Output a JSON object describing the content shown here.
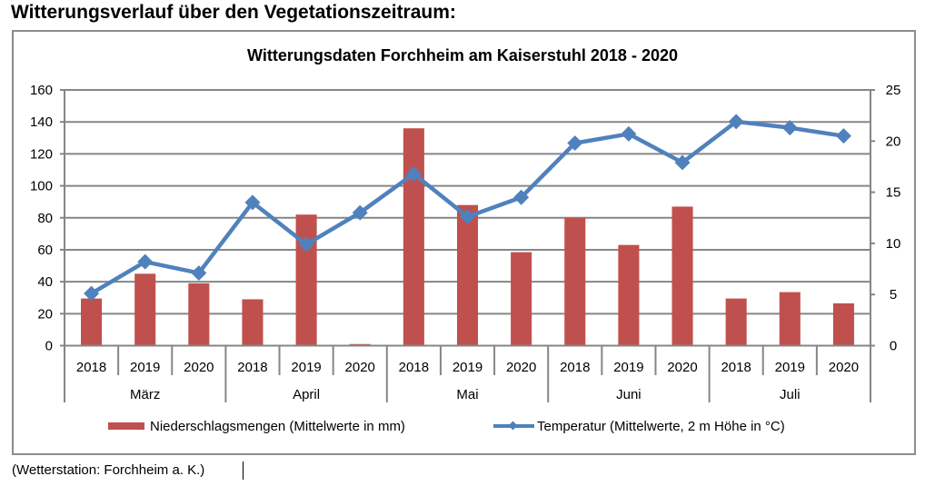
{
  "page": {
    "heading": "Witterungsverlauf über den Vegetationszeitraum:",
    "footer": "(Wetterstation: Forchheim a. K.)"
  },
  "colors": {
    "bar": "#c0504d",
    "line": "#4f81bd",
    "grid": "#868686",
    "frame": "#8c8c8c"
  },
  "chart_data": {
    "type": "bar",
    "combo": "bar+line (dual axis)",
    "title": "Witterungsdaten Forchheim am Kaiserstuhl 2018 - 2020",
    "xlabel": "",
    "ylabel": "",
    "y2label": "",
    "ylim": [
      0,
      160
    ],
    "y2lim": [
      0,
      25
    ],
    "yticks": [
      "0",
      "20",
      "40",
      "60",
      "80",
      "100",
      "120",
      "140",
      "160"
    ],
    "y2ticks": [
      "0",
      "5",
      "10",
      "15",
      "20",
      "25"
    ],
    "grid": true,
    "legend_position": "bottom",
    "groups": [
      {
        "label": "März",
        "years": [
          "2018",
          "2019",
          "2020"
        ]
      },
      {
        "label": "April",
        "years": [
          "2018",
          "2019",
          "2020"
        ]
      },
      {
        "label": "Mai",
        "years": [
          "2018",
          "2019",
          "2020"
        ]
      },
      {
        "label": "Juni",
        "years": [
          "2018",
          "2019",
          "2020"
        ]
      },
      {
        "label": "Juli",
        "years": [
          "2018",
          "2019",
          "2020"
        ]
      }
    ],
    "categories": [
      "März 2018",
      "März 2019",
      "März 2020",
      "April 2018",
      "April 2019",
      "April 2020",
      "Mai 2018",
      "Mai 2019",
      "Mai 2020",
      "Juni 2018",
      "Juni 2019",
      "Juni 2020",
      "Juli 2018",
      "Juli 2019",
      "Juli 2020"
    ],
    "series": [
      {
        "name": "Niederschlagsmengen (Mittelwerte in mm)",
        "type": "bar",
        "axis": "left",
        "values": [
          29.5,
          45,
          39,
          29,
          82,
          1,
          136,
          88,
          58.5,
          80,
          63,
          87,
          29.5,
          33.5,
          26.5
        ]
      },
      {
        "name": "Temperatur (Mittelwerte, 2 m Höhe in °C)",
        "type": "line",
        "marker": "diamond",
        "axis": "right",
        "values": [
          5.1,
          8.2,
          7.1,
          14.0,
          9.9,
          13.0,
          16.8,
          12.6,
          14.5,
          19.8,
          20.7,
          17.9,
          21.9,
          21.3,
          20.5
        ]
      }
    ]
  }
}
